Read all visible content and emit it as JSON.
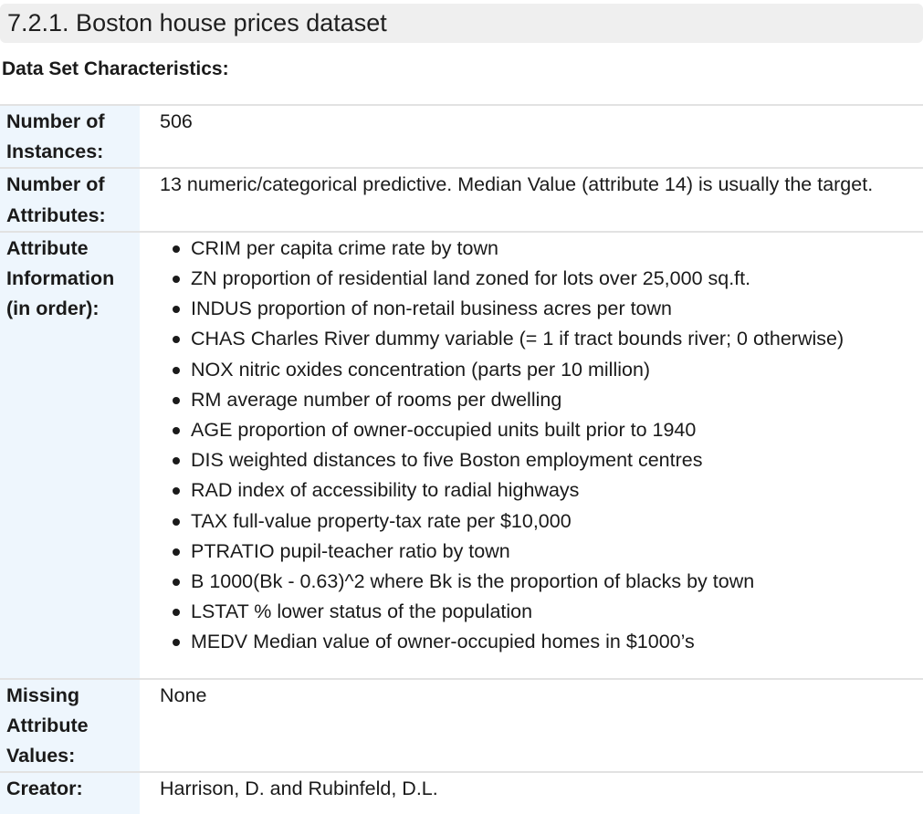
{
  "section": {
    "title": "7.2.1. Boston house prices dataset"
  },
  "characteristics": {
    "heading": "Data Set Characteristics:"
  },
  "fields": {
    "instances": {
      "name": "Number of Instances:",
      "value": "506"
    },
    "attributes": {
      "name": "Number of Attributes:",
      "value": "13 numeric/categorical predictive. Median Value (attribute 14) is usually the target."
    },
    "attribute_information": {
      "name": "Attribute Information (in order):",
      "items": [
        "CRIM per capita crime rate by town",
        "ZN proportion of residential land zoned for lots over 25,000 sq.ft.",
        "INDUS proportion of non-retail business acres per town",
        "CHAS Charles River dummy variable (= 1 if tract bounds river; 0 otherwise)",
        "NOX nitric oxides concentration (parts per 10 million)",
        "RM average number of rooms per dwelling",
        "AGE proportion of owner-occupied units built prior to 1940",
        "DIS weighted distances to five Boston employment centres",
        "RAD index of accessibility to radial highways",
        "TAX full-value property-tax rate per $10,000",
        "PTRATIO pupil-teacher ratio by town",
        "B 1000(Bk - 0.63)^2 where Bk is the proportion of blacks by town",
        "LSTAT % lower status of the population",
        "MEDV Median value of owner-occupied homes in $1000’s"
      ]
    },
    "missing": {
      "name": "Missing Attribute Values:",
      "value": "None"
    },
    "creator": {
      "name": "Creator:",
      "value": "Harrison, D. and Rubinfeld, D.L."
    }
  }
}
